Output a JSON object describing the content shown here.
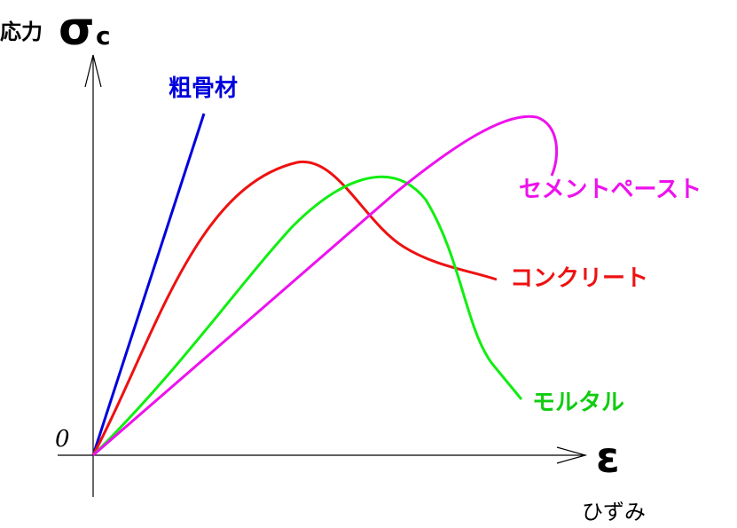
{
  "axes": {
    "y_label": "応力",
    "y_symbol": "σ",
    "y_subscript": "c",
    "origin": "0",
    "x_symbol": "ε",
    "x_label": "ひずみ"
  },
  "curves": [
    {
      "label": "粗骨材"
    },
    {
      "label": "セメントペースト"
    },
    {
      "label": "コンクリート"
    },
    {
      "label": "モルタル"
    }
  ]
}
